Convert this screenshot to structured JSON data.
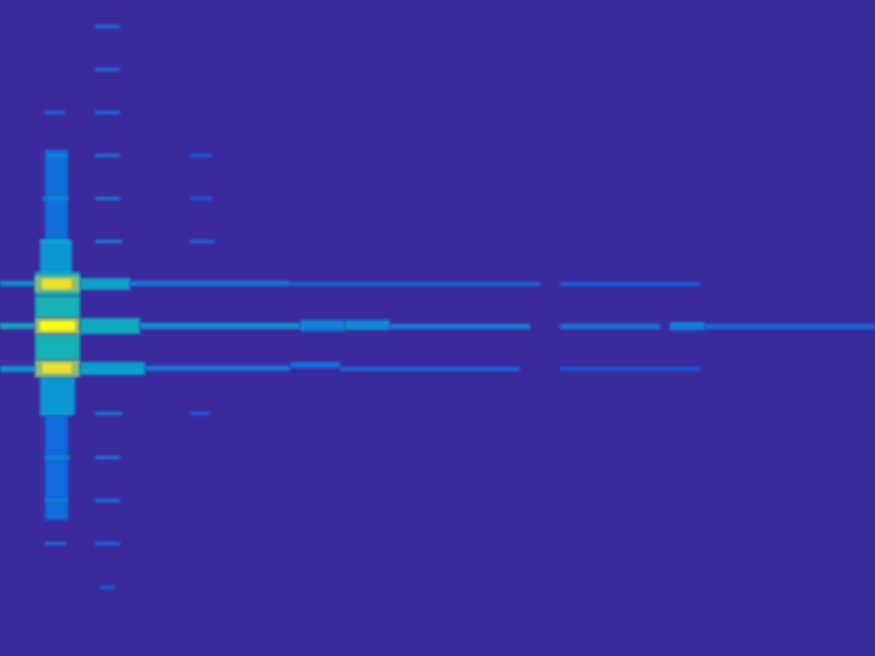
{
  "chart_data": {
    "type": "heatmap",
    "xlim": [
      0,
      875
    ],
    "ylim": [
      0,
      656
    ],
    "zlim": [
      0,
      1
    ],
    "tick_labels": false,
    "grid": false,
    "cells": [
      [
        45,
        68,
        150,
        245,
        0.2
      ],
      [
        40,
        72,
        240,
        275,
        0.35
      ],
      [
        35,
        80,
        272,
        296,
        0.45
      ],
      [
        35,
        80,
        296,
        318,
        0.5
      ],
      [
        35,
        80,
        334,
        360,
        0.5
      ],
      [
        40,
        75,
        376,
        415,
        0.35
      ],
      [
        45,
        68,
        415,
        520,
        0.18
      ],
      [
        0,
        35,
        281,
        286,
        0.35
      ],
      [
        35,
        80,
        276,
        292,
        0.7
      ],
      [
        42,
        72,
        279,
        289,
        0.95
      ],
      [
        80,
        130,
        278,
        290,
        0.4
      ],
      [
        130,
        290,
        281,
        286,
        0.25
      ],
      [
        290,
        540,
        282,
        286,
        0.2
      ],
      [
        560,
        700,
        282,
        286,
        0.15
      ],
      [
        0,
        35,
        323,
        329,
        0.45
      ],
      [
        35,
        80,
        318,
        334,
        0.75
      ],
      [
        40,
        75,
        321,
        331,
        1.0
      ],
      [
        80,
        140,
        318,
        334,
        0.45
      ],
      [
        140,
        300,
        323,
        329,
        0.35
      ],
      [
        300,
        345,
        320,
        331,
        0.28
      ],
      [
        345,
        390,
        320,
        330,
        0.3
      ],
      [
        390,
        530,
        324,
        329,
        0.3
      ],
      [
        560,
        660,
        324,
        329,
        0.25
      ],
      [
        670,
        705,
        322,
        330,
        0.28
      ],
      [
        705,
        875,
        324,
        329,
        0.22
      ],
      [
        0,
        35,
        366,
        372,
        0.35
      ],
      [
        35,
        80,
        360,
        377,
        0.7
      ],
      [
        42,
        72,
        363,
        373,
        0.95
      ],
      [
        80,
        145,
        362,
        375,
        0.4
      ],
      [
        145,
        290,
        366,
        371,
        0.25
      ],
      [
        290,
        340,
        362,
        368,
        0.2
      ],
      [
        340,
        520,
        367,
        371,
        0.18
      ],
      [
        560,
        700,
        367,
        371,
        0.12
      ],
      [
        95,
        120,
        25,
        28,
        0.22
      ],
      [
        95,
        120,
        68,
        71,
        0.22
      ],
      [
        95,
        120,
        111,
        114,
        0.22
      ],
      [
        95,
        120,
        154,
        157,
        0.25
      ],
      [
        95,
        120,
        197,
        200,
        0.25
      ],
      [
        95,
        122,
        240,
        243,
        0.28
      ],
      [
        95,
        122,
        412,
        415,
        0.28
      ],
      [
        95,
        120,
        456,
        459,
        0.25
      ],
      [
        95,
        120,
        499,
        502,
        0.22
      ],
      [
        95,
        120,
        542,
        545,
        0.2
      ],
      [
        100,
        115,
        586,
        589,
        0.15
      ],
      [
        45,
        65,
        111,
        114,
        0.2
      ],
      [
        48,
        66,
        154,
        157,
        0.3
      ],
      [
        42,
        68,
        197,
        200,
        0.3
      ],
      [
        40,
        70,
        240,
        243,
        0.45
      ],
      [
        40,
        72,
        412,
        415,
        0.4
      ],
      [
        45,
        70,
        456,
        459,
        0.3
      ],
      [
        45,
        68,
        499,
        502,
        0.25
      ],
      [
        45,
        66,
        542,
        545,
        0.22
      ],
      [
        190,
        212,
        154,
        157,
        0.15
      ],
      [
        190,
        212,
        197,
        200,
        0.15
      ],
      [
        190,
        215,
        240,
        243,
        0.2
      ],
      [
        190,
        210,
        412,
        415,
        0.15
      ]
    ]
  }
}
